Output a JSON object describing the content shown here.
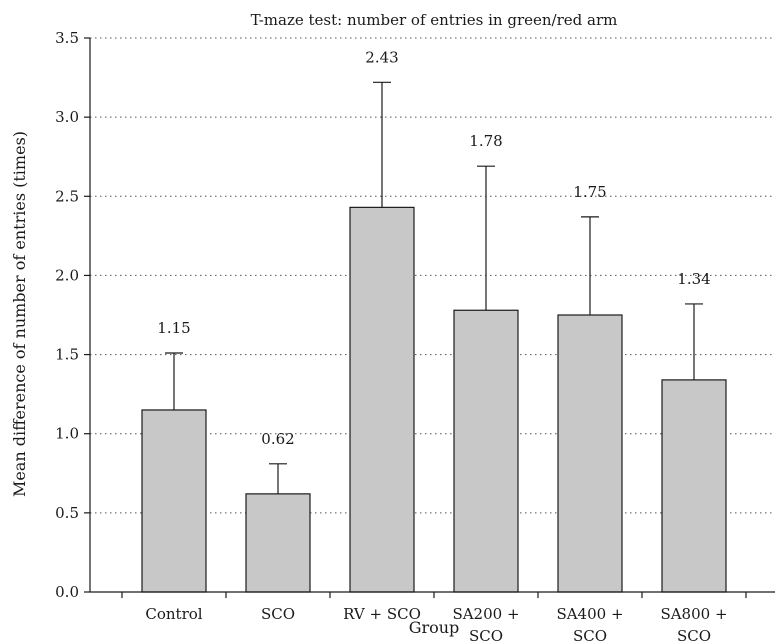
{
  "chart_data": {
    "type": "bar",
    "title": "T-maze test: number of entries in green/red arm",
    "xlabel": "Group",
    "ylabel": "Mean difference of number of entries (times)",
    "categories": [
      [
        "Control"
      ],
      [
        "SCO"
      ],
      [
        "RV + SCO"
      ],
      [
        "SA200 +",
        "SCO"
      ],
      [
        "SA400 +",
        "SCO"
      ],
      [
        "SA800 +",
        "SCO"
      ]
    ],
    "values": [
      1.15,
      0.62,
      2.43,
      1.78,
      1.75,
      1.34
    ],
    "error_upper": [
      1.51,
      0.81,
      3.22,
      2.69,
      2.37,
      1.82
    ],
    "data_labels": [
      "1.15",
      "0.62",
      "2.43",
      "1.78",
      "1.75",
      "1.34"
    ],
    "ylim": [
      0,
      3.5
    ],
    "yticks": [
      0.0,
      0.5,
      1.0,
      1.5,
      2.0,
      2.5,
      3.0,
      3.5
    ],
    "ytick_labels": [
      "0.0",
      "0.5",
      "1.0",
      "1.5",
      "2.0",
      "2.5",
      "3.0",
      "3.5"
    ],
    "grid": true,
    "colors": {
      "bar_fill": "#c8c8c8",
      "outline": "#1a1a1a"
    }
  }
}
